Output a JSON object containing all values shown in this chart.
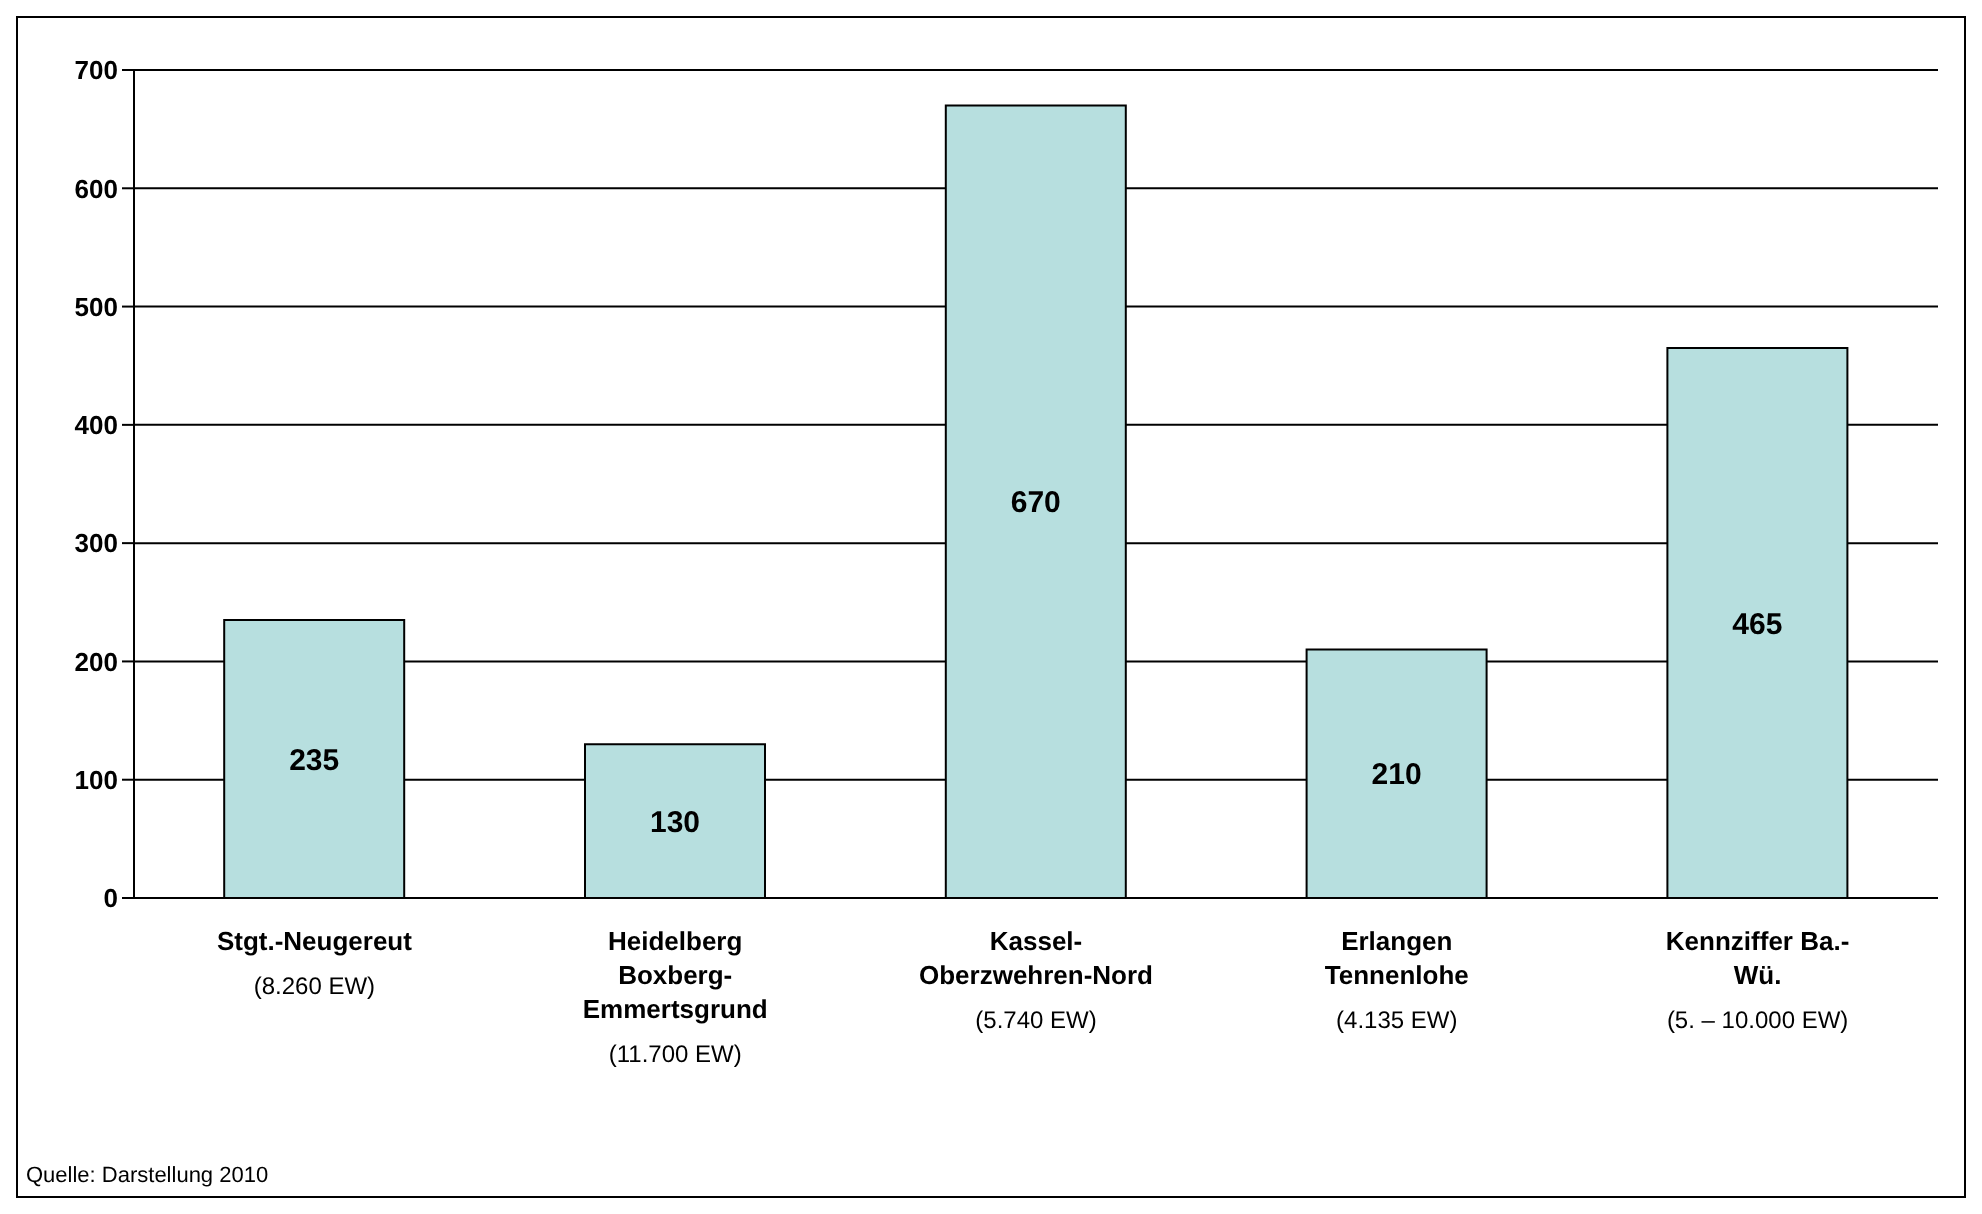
{
  "chart_data": {
    "type": "bar",
    "categories": [
      "Stgt.-Neugereut\n(8.260 EW)",
      "Heidelberg\nBoxberg-\nEmmertsgrund\n(11.700 EW)",
      "Kassel-\nOberzwehren-Nord\n(5.740 EW)",
      "Erlangen\nTennenlohe\n(4.135 EW)",
      "Kennziffer Ba.-\nWü.\n(5. – 10.000 EW)"
    ],
    "values": [
      235,
      130,
      670,
      210,
      465
    ],
    "color": "#b7dfdf",
    "ylim": [
      0,
      700
    ],
    "yticks": [
      0,
      100,
      200,
      300,
      400,
      500,
      600,
      700
    ],
    "grid": "y",
    "data_labels": true,
    "annotations": [
      "Quelle: Darstellung 2010"
    ]
  }
}
